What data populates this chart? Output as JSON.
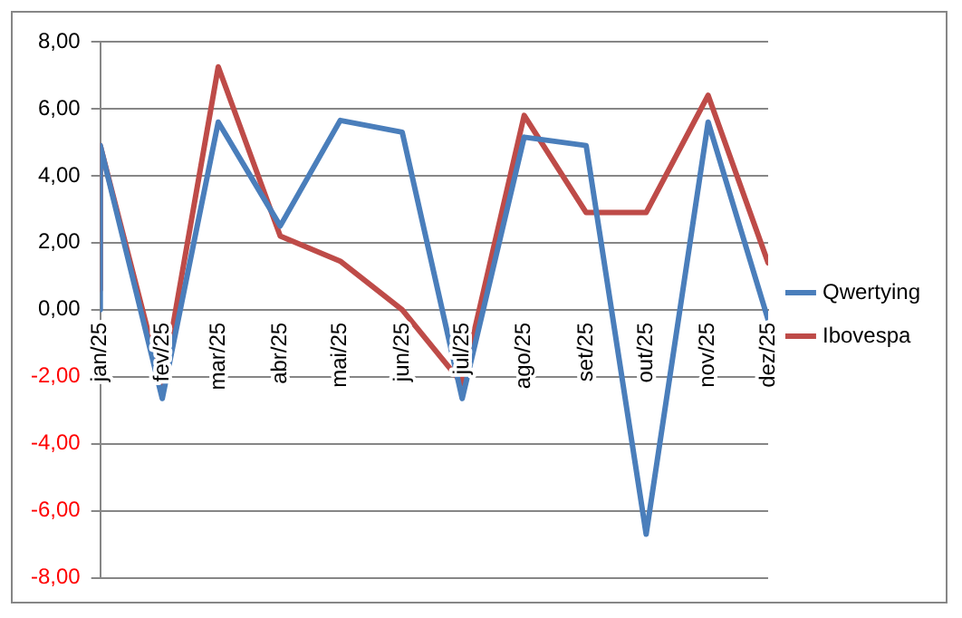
{
  "chart_data": {
    "type": "line",
    "x": [
      "2025-01",
      "2025-01",
      "2025-02",
      "2025-03",
      "2025-04",
      "2025-05",
      "2025-06",
      "2025-07",
      "2025-08",
      "2025-09",
      "2025-10",
      "2025-11",
      "2025-12"
    ],
    "series": [
      {
        "name": "Qwertying",
        "color": "#4a7ebb",
        "values": [
          0.0,
          4.9,
          -2.65,
          5.6,
          2.5,
          5.65,
          5.3,
          -2.65,
          5.15,
          4.9,
          -6.7,
          5.6,
          -0.3
        ]
      },
      {
        "name": "Ibovespa",
        "color": "#be4b48",
        "values": [
          0.6,
          4.9,
          -2.3,
          7.25,
          2.2,
          1.45,
          0.0,
          -2.2,
          5.8,
          2.9,
          2.9,
          6.4,
          1.4
        ]
      }
    ],
    "xlim": [
      "2025-01",
      "2025-12"
    ],
    "xticks": [
      {
        "value": "2025-01",
        "label": "jan/25"
      },
      {
        "value": "2025-02",
        "label": "fev/25"
      },
      {
        "value": "2025-03",
        "label": "mar/25"
      },
      {
        "value": "2025-04",
        "label": "abr/25"
      },
      {
        "value": "2025-05",
        "label": "mai/25"
      },
      {
        "value": "2025-06",
        "label": "jun/25"
      },
      {
        "value": "2025-07",
        "label": "jul/25"
      },
      {
        "value": "2025-08",
        "label": "ago/25"
      },
      {
        "value": "2025-09",
        "label": "set/25"
      },
      {
        "value": "2025-10",
        "label": "out/25"
      },
      {
        "value": "2025-11",
        "label": "nov/25"
      },
      {
        "value": "2025-12",
        "label": "dez/25"
      }
    ],
    "ylim": [
      -8,
      8
    ],
    "yticks": [
      {
        "value": -8,
        "label": "-8,00"
      },
      {
        "value": -6,
        "label": "-6,00"
      },
      {
        "value": -4,
        "label": "-4,00"
      },
      {
        "value": -2,
        "label": "-2,00"
      },
      {
        "value": 0,
        "label": "0,00"
      },
      {
        "value": 2,
        "label": "2,00"
      },
      {
        "value": 4,
        "label": "4,00"
      },
      {
        "value": 6,
        "label": "6,00"
      },
      {
        "value": 8,
        "label": "8,00"
      }
    ],
    "grid": "y",
    "legend": "right",
    "marker": "none",
    "line_style": "solid"
  }
}
